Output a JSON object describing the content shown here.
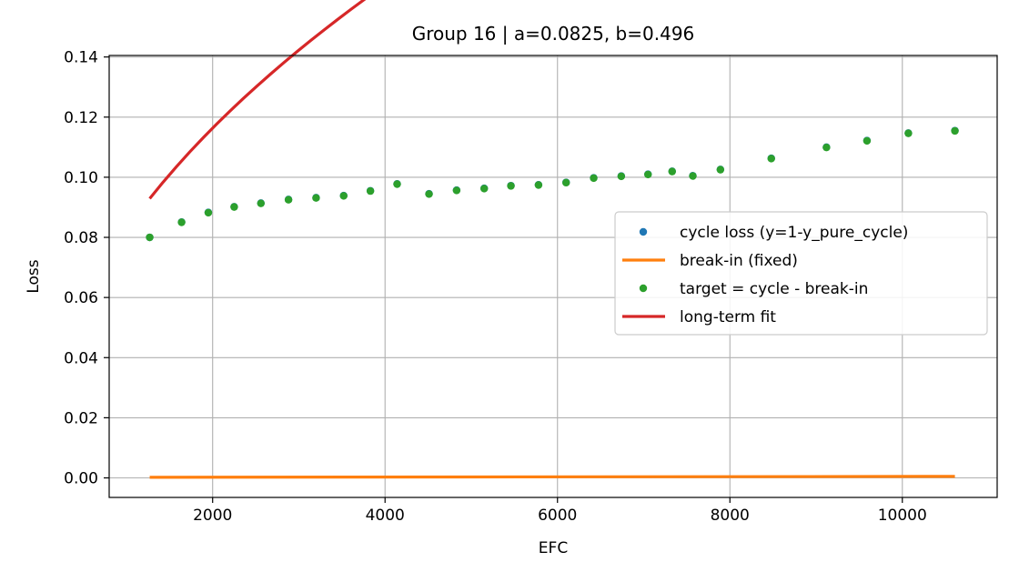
{
  "chart_data": {
    "type": "line",
    "title": "Group 16 | a=0.0825, b=0.496",
    "xlabel": "EFC",
    "ylabel": "Loss",
    "xlim": [
      800,
      11100
    ],
    "ylim": [
      -0.0065,
      0.1405
    ],
    "xticks": [
      2000,
      4000,
      6000,
      8000,
      10000
    ],
    "yticks": [
      0.0,
      0.02,
      0.04,
      0.06,
      0.08,
      0.1,
      0.12,
      0.14
    ],
    "xtick_labels": [
      "2000",
      "4000",
      "6000",
      "8000",
      "10000"
    ],
    "ytick_labels": [
      "0.00",
      "0.02",
      "0.04",
      "0.06",
      "0.08",
      "0.10",
      "0.12",
      "0.14"
    ],
    "grid": true,
    "legend_position": "center-right",
    "series": [
      {
        "name": "cycle loss (y=1-y_pure_cycle)",
        "kind": "scatter",
        "color": "#1f77b4",
        "x": [
          1270,
          1640,
          1950,
          2250,
          2560,
          2880,
          3200,
          3520,
          3830,
          4140,
          4510,
          4830,
          5150,
          5460,
          5780,
          6100,
          6420,
          6740,
          7050,
          7330,
          7570,
          7890,
          8480,
          9120,
          9590,
          10070,
          10610
        ],
        "y": [
          0.08,
          0.0851,
          0.0883,
          0.0902,
          0.0914,
          0.0926,
          0.0932,
          0.0939,
          0.0955,
          0.0978,
          0.0945,
          0.0957,
          0.0963,
          0.0972,
          0.0975,
          0.0983,
          0.0998,
          0.1004,
          0.101,
          0.102,
          0.1005,
          0.1026,
          0.1063,
          0.11,
          0.1122,
          0.1147,
          0.1155
        ]
      },
      {
        "name": "break-in (fixed)",
        "kind": "line",
        "color": "#ff7f0e",
        "x": [
          1270,
          10610
        ],
        "y": [
          0.0002,
          0.0005
        ]
      },
      {
        "name": "target = cycle - break-in",
        "kind": "scatter",
        "color": "#2ca02c",
        "x": [
          1270,
          1640,
          1950,
          2250,
          2560,
          2880,
          3200,
          3520,
          3830,
          4140,
          4510,
          4830,
          5150,
          5460,
          5780,
          6100,
          6420,
          6740,
          7050,
          7330,
          7570,
          7890,
          8480,
          9120,
          9590,
          10070,
          10610
        ],
        "y": [
          0.08,
          0.085,
          0.0882,
          0.0901,
          0.0913,
          0.0925,
          0.0931,
          0.0938,
          0.0954,
          0.0977,
          0.0944,
          0.0956,
          0.0962,
          0.0971,
          0.0974,
          0.0982,
          0.0997,
          0.1003,
          0.1009,
          0.1019,
          0.1004,
          0.1025,
          0.1062,
          0.1099,
          0.1121,
          0.1146,
          0.1154
        ]
      },
      {
        "name": "long-term fit",
        "kind": "line",
        "color": "#d62728",
        "fit": {
          "a": 0.0825,
          "b": 0.496,
          "x_start": 1270,
          "x_end": 10610
        }
      }
    ]
  }
}
